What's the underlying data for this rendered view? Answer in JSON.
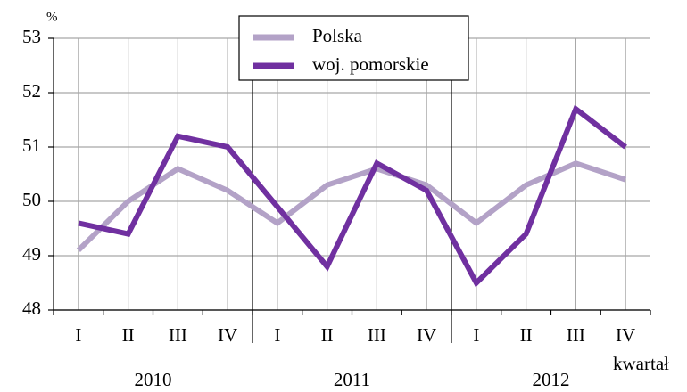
{
  "chart_data": {
    "type": "line",
    "y_axis_label": "%",
    "x_axis_label": "kwartał",
    "categories": [
      "I",
      "II",
      "III",
      "IV",
      "I",
      "II",
      "III",
      "IV",
      "I",
      "II",
      "III",
      "IV"
    ],
    "years": [
      "2010",
      "2011",
      "2012"
    ],
    "series": [
      {
        "name": "Polska",
        "color": "#b3a2c7",
        "values": [
          49.1,
          50.0,
          50.6,
          50.2,
          49.6,
          50.3,
          50.6,
          50.3,
          49.6,
          50.3,
          50.7,
          50.4
        ]
      },
      {
        "name": "woj. pomorskie",
        "color": "#7030a0",
        "values": [
          49.6,
          49.4,
          51.2,
          51.0,
          49.9,
          48.8,
          50.7,
          50.2,
          48.5,
          49.4,
          51.7,
          51.0
        ]
      }
    ],
    "ylim": [
      48,
      53
    ],
    "yticks": [
      48,
      49,
      50,
      51,
      52,
      53
    ],
    "grid": true
  }
}
